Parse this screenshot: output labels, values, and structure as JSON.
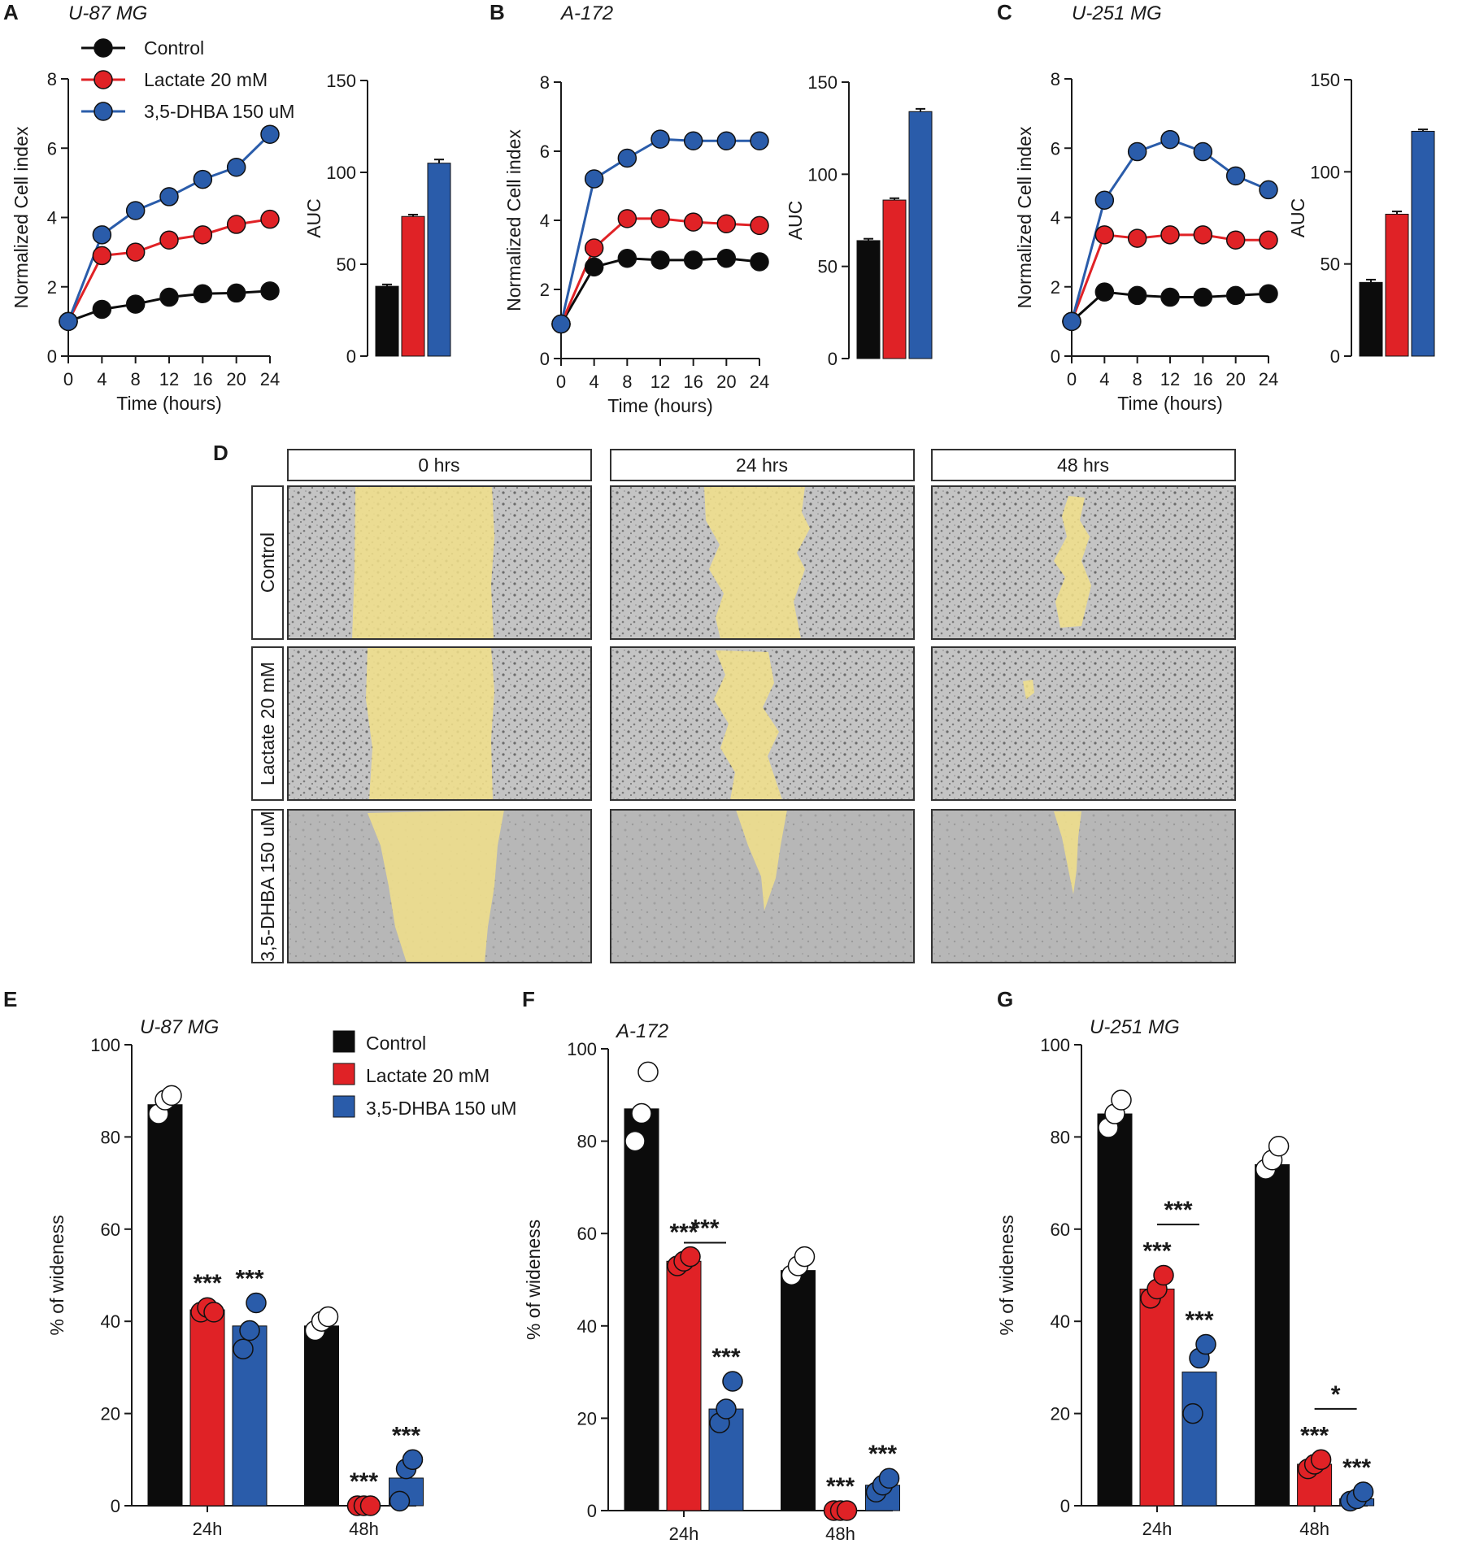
{
  "colors": {
    "control": "#0c0c0c",
    "lactate": "#e02226",
    "dhba": "#2a5caa",
    "scratch": "#f2e08a",
    "cells": "#b9b9b9"
  },
  "legend": {
    "control": "Control",
    "lactate": "Lactate 20 mM",
    "dhba": "3,5-DHBA 150 uM"
  },
  "microscopy": {
    "panel": "D",
    "columns": [
      "0 hrs",
      "24 hrs",
      "48 hrs"
    ],
    "rows": [
      "Control",
      "Lactate 20 mM",
      "3,5-DHBA 150 uM"
    ]
  },
  "chart_data": [
    {
      "panel": "A",
      "type": "line",
      "title": "U-87 MG",
      "xlabel": "Time (hours)",
      "ylabel": "Normalized Cell index",
      "x": [
        0,
        4,
        8,
        12,
        16,
        20,
        24
      ],
      "ylim": [
        0,
        8
      ],
      "yticks": [
        0,
        2,
        4,
        6,
        8
      ],
      "series": [
        {
          "name": "Control",
          "values": [
            1.0,
            1.35,
            1.5,
            1.7,
            1.8,
            1.82,
            1.88
          ]
        },
        {
          "name": "Lactate 20 mM",
          "values": [
            1.0,
            2.9,
            3.0,
            3.35,
            3.5,
            3.8,
            3.95
          ]
        },
        {
          "name": "3,5-DHBA 150 uM",
          "values": [
            1.0,
            3.5,
            4.2,
            4.6,
            5.1,
            5.45,
            6.4
          ]
        }
      ]
    },
    {
      "panel": "A",
      "type": "bar",
      "ylabel": "AUC",
      "ylim": [
        0,
        150
      ],
      "yticks": [
        0,
        50,
        100,
        150
      ],
      "categories": [
        "Control",
        "Lactate 20 mM",
        "3,5-DHBA 150 uM"
      ],
      "values": [
        38,
        76,
        105
      ],
      "errors": [
        1,
        1,
        2
      ]
    },
    {
      "panel": "B",
      "type": "line",
      "title": "A-172",
      "xlabel": "Time (hours)",
      "ylabel": "Normalized Cell index",
      "x": [
        0,
        4,
        8,
        12,
        16,
        20,
        24
      ],
      "ylim": [
        0,
        8
      ],
      "yticks": [
        0,
        2,
        4,
        6,
        8
      ],
      "series": [
        {
          "name": "Control",
          "values": [
            1.0,
            2.65,
            2.9,
            2.85,
            2.85,
            2.9,
            2.8
          ]
        },
        {
          "name": "Lactate 20 mM",
          "values": [
            1.0,
            3.2,
            4.05,
            4.05,
            3.95,
            3.9,
            3.85
          ]
        },
        {
          "name": "3,5-DHBA 150 uM",
          "values": [
            1.0,
            5.2,
            5.8,
            6.35,
            6.3,
            6.3,
            6.3
          ]
        }
      ]
    },
    {
      "panel": "B",
      "type": "bar",
      "ylabel": "AUC",
      "ylim": [
        0,
        150
      ],
      "yticks": [
        0,
        50,
        100,
        150
      ],
      "categories": [
        "Control",
        "Lactate 20 mM",
        "3,5-DHBA 150 uM"
      ],
      "values": [
        64,
        86,
        134
      ],
      "errors": [
        1,
        1,
        1.5
      ]
    },
    {
      "panel": "C",
      "type": "line",
      "title": "U-251 MG",
      "xlabel": "Time (hours)",
      "ylabel": "Normalized Cell index",
      "x": [
        0,
        4,
        8,
        12,
        16,
        20,
        24
      ],
      "ylim": [
        0,
        8
      ],
      "yticks": [
        0,
        2,
        4,
        6,
        8
      ],
      "series": [
        {
          "name": "Control",
          "values": [
            1.0,
            1.85,
            1.75,
            1.7,
            1.7,
            1.75,
            1.8
          ]
        },
        {
          "name": "Lactate 20 mM",
          "values": [
            1.0,
            3.5,
            3.4,
            3.5,
            3.5,
            3.35,
            3.35
          ]
        },
        {
          "name": "3,5-DHBA 150 uM",
          "values": [
            1.0,
            4.5,
            5.9,
            6.25,
            5.9,
            5.2,
            4.8
          ]
        }
      ]
    },
    {
      "panel": "C",
      "type": "bar",
      "ylabel": "AUC",
      "ylim": [
        0,
        150
      ],
      "yticks": [
        0,
        50,
        100,
        150
      ],
      "categories": [
        "Control",
        "Lactate 20 mM",
        "3,5-DHBA 150 uM"
      ],
      "values": [
        40,
        77,
        122
      ],
      "errors": [
        1.5,
        1.5,
        1
      ]
    },
    {
      "panel": "E",
      "type": "bar",
      "title": "U-87 MG",
      "ylabel": "% of wideness",
      "ylim": [
        0,
        100
      ],
      "yticks": [
        0,
        20,
        40,
        60,
        80,
        100
      ],
      "categories": [
        "24h",
        "48h"
      ],
      "series": [
        {
          "name": "Control",
          "values": [
            87,
            39
          ],
          "points": [
            [
              85,
              88,
              89
            ],
            [
              38,
              40,
              41
            ]
          ]
        },
        {
          "name": "Lactate 20 mM",
          "values": [
            42.5,
            0
          ],
          "points": [
            [
              42,
              43,
              42
            ],
            [
              0,
              0,
              0
            ]
          ]
        },
        {
          "name": "3,5-DHBA 150 uM",
          "values": [
            39,
            6
          ],
          "points": [
            [
              34,
              38,
              44
            ],
            [
              1,
              8,
              10
            ]
          ]
        }
      ],
      "annotations": [
        {
          "group": 0,
          "series": 1,
          "text": "***"
        },
        {
          "group": 0,
          "series": 2,
          "text": "***"
        },
        {
          "group": 1,
          "series": 1,
          "text": "***"
        },
        {
          "group": 1,
          "series": 2,
          "text": "***"
        }
      ],
      "brackets": []
    },
    {
      "panel": "F",
      "type": "bar",
      "title": "A-172",
      "ylabel": "% of wideness",
      "ylim": [
        0,
        100
      ],
      "yticks": [
        0,
        20,
        40,
        60,
        80,
        100
      ],
      "categories": [
        "24h",
        "48h"
      ],
      "series": [
        {
          "name": "Control",
          "values": [
            87,
            52
          ],
          "points": [
            [
              80,
              86,
              95
            ],
            [
              51,
              53,
              55
            ]
          ]
        },
        {
          "name": "Lactate 20 mM",
          "values": [
            54,
            0
          ],
          "points": [
            [
              53,
              54,
              55
            ],
            [
              0,
              0,
              0
            ]
          ]
        },
        {
          "name": "3,5-DHBA 150 uM",
          "values": [
            22,
            5.5
          ],
          "points": [
            [
              19,
              22,
              28
            ],
            [
              4,
              5.5,
              7
            ]
          ]
        }
      ],
      "annotations": [
        {
          "group": 0,
          "series": 1,
          "text": "***"
        },
        {
          "group": 0,
          "series": 2,
          "text": "***"
        },
        {
          "group": 1,
          "series": 1,
          "text": "***"
        },
        {
          "group": 1,
          "series": 2,
          "text": "***"
        }
      ],
      "brackets": [
        {
          "group": 0,
          "from": 1,
          "to": 2,
          "level": 58,
          "text": "***"
        }
      ]
    },
    {
      "panel": "G",
      "type": "bar",
      "title": "U-251 MG",
      "ylabel": "% of wideness",
      "ylim": [
        0,
        100
      ],
      "yticks": [
        0,
        20,
        40,
        60,
        80,
        100
      ],
      "categories": [
        "24h",
        "48h"
      ],
      "series": [
        {
          "name": "Control",
          "values": [
            85,
            74
          ],
          "points": [
            [
              82,
              85,
              88
            ],
            [
              73,
              75,
              78
            ]
          ]
        },
        {
          "name": "Lactate 20 mM",
          "values": [
            47,
            9
          ],
          "points": [
            [
              45,
              47,
              50
            ],
            [
              8,
              9,
              10
            ]
          ]
        },
        {
          "name": "3,5-DHBA 150 uM",
          "values": [
            29,
            1.5
          ],
          "points": [
            [
              20,
              32,
              35
            ],
            [
              1,
              1.5,
              3
            ]
          ]
        }
      ],
      "annotations": [
        {
          "group": 0,
          "series": 1,
          "text": "***"
        },
        {
          "group": 0,
          "series": 2,
          "text": "***"
        },
        {
          "group": 1,
          "series": 1,
          "text": "***"
        },
        {
          "group": 1,
          "series": 2,
          "text": "***"
        }
      ],
      "brackets": [
        {
          "group": 0,
          "from": 1,
          "to": 2,
          "level": 61,
          "text": "***"
        },
        {
          "group": 1,
          "from": 1,
          "to": 2,
          "level": 21,
          "text": "*"
        }
      ]
    }
  ]
}
